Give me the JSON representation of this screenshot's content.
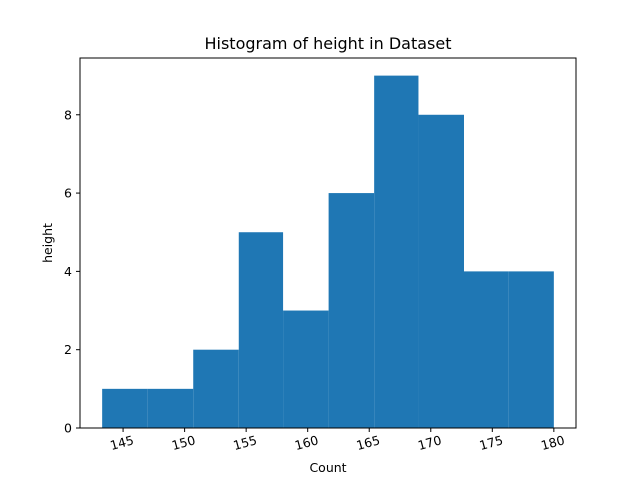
{
  "chart_data": {
    "type": "bar",
    "title": "Histogram of height in Dataset",
    "xlabel": "Count",
    "ylabel": "height",
    "bins": [
      {
        "x0": 143.3,
        "x1": 147.0,
        "value": 1
      },
      {
        "x0": 147.0,
        "x1": 150.7,
        "value": 1
      },
      {
        "x0": 150.7,
        "x1": 154.4,
        "value": 2
      },
      {
        "x0": 154.4,
        "x1": 158.0,
        "value": 5
      },
      {
        "x0": 158.0,
        "x1": 161.7,
        "value": 3
      },
      {
        "x0": 161.7,
        "x1": 165.4,
        "value": 6
      },
      {
        "x0": 165.4,
        "x1": 169.0,
        "value": 9
      },
      {
        "x0": 169.0,
        "x1": 172.7,
        "value": 8
      },
      {
        "x0": 172.7,
        "x1": 176.3,
        "value": 4
      },
      {
        "x0": 176.3,
        "x1": 180.0,
        "value": 4
      }
    ],
    "xlim": [
      141.5,
      181.8
    ],
    "ylim": [
      0,
      9.45
    ],
    "xticks": [
      145,
      150,
      155,
      160,
      165,
      170,
      175,
      180
    ],
    "yticks": [
      0,
      2,
      4,
      6,
      8
    ],
    "bar_color": "#1f77b4",
    "grid": false,
    "legend": "none"
  }
}
